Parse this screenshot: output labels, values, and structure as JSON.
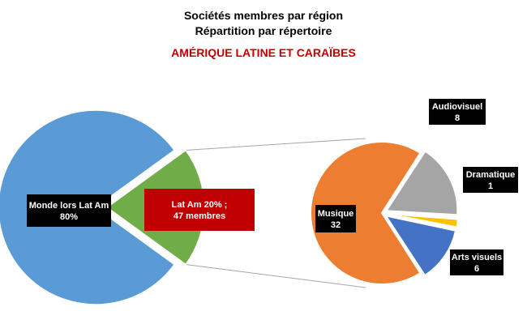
{
  "header": {
    "title": "Sociétés membres par région",
    "subtitle": "Répartition par répertoire",
    "region": "AMÉRIQUE LATINE ET CARAÏBES"
  },
  "chart_data": {
    "type": "pie",
    "title": "Sociétés membres par région",
    "subtitle": "Répartition par répertoire",
    "primary": {
      "slices": [
        {
          "name": "Monde lors Lat Am",
          "value": 80,
          "label_lines": [
            "Monde lors Lat Am",
            "80%"
          ],
          "color": "#5b9bd5"
        },
        {
          "name": "Lat Am",
          "value": 20,
          "label_lines": [
            "Lat Am 20% ;",
            "47 membres"
          ],
          "color": "#70ad47"
        }
      ]
    },
    "secondary": {
      "slices": [
        {
          "name": "Musique",
          "value": 32,
          "label_lines": [
            "Musique",
            "32"
          ],
          "color": "#ed7d31"
        },
        {
          "name": "Audiovisuel",
          "value": 8,
          "label_lines": [
            "Audiovisuel",
            "8"
          ],
          "color": "#a5a5a5"
        },
        {
          "name": "Dramatique",
          "value": 1,
          "label_lines": [
            "Dramatique",
            "1"
          ],
          "color": "#ffc000"
        },
        {
          "name": "Arts visuels",
          "value": 6,
          "label_lines": [
            "Arts visuels",
            "6"
          ],
          "color": "#4472c4"
        }
      ]
    },
    "label_colors": {
      "dark": "#000000",
      "highlight": "#c00000",
      "text": "#ffffff"
    }
  }
}
